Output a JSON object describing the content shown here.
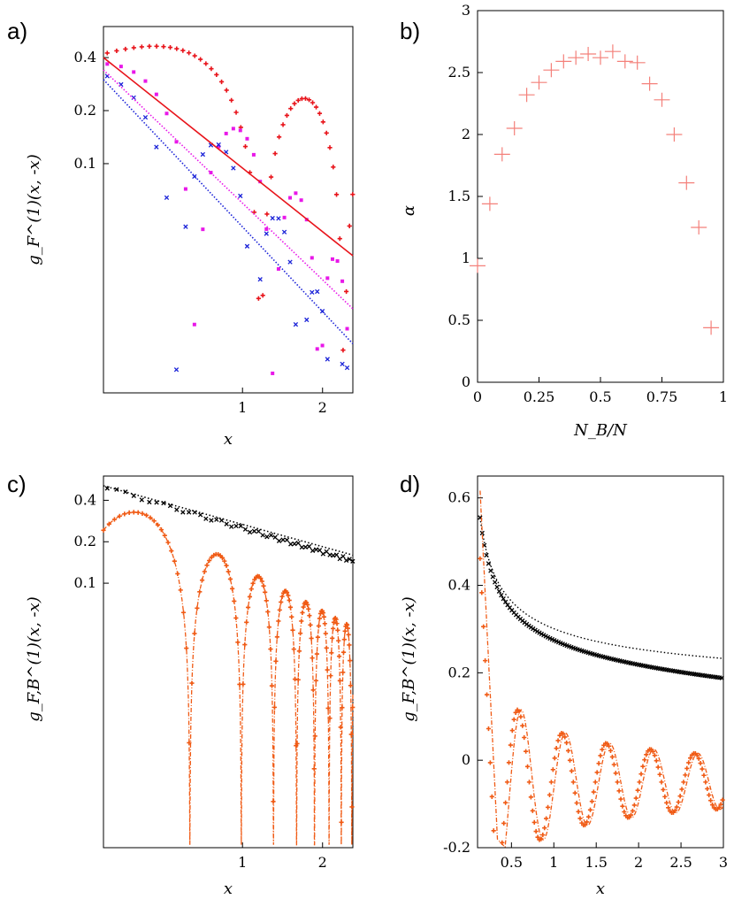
{
  "chart_data": [
    {
      "panel": "a)",
      "type": "scatter",
      "xlabel": "x",
      "ylabel": "g_F^(1)(x, -x)",
      "xscale": "log",
      "yscale": "log",
      "xlim": [
        0.3,
        2.6
      ],
      "ylim": [
        0.005,
        0.6
      ],
      "xticks": [
        {
          "v": 1,
          "label": "1"
        },
        {
          "v": 2,
          "label": "2"
        }
      ],
      "yticks": [
        {
          "v": 0.4,
          "label": "0.4"
        },
        {
          "v": 0.2,
          "label": "0.2"
        },
        {
          "v": 0.1,
          "label": "0.1"
        }
      ],
      "colors": {
        "red": "#e8141b",
        "magenta": "#e818e8",
        "blue": "#1a22d8"
      },
      "series": [
        {
          "color": "red",
          "marker": "plus",
          "style": "oscillating",
          "amp": 0.52,
          "decay": 0.25,
          "period": 0.62,
          "phase": 0.55,
          "step": 0.02
        },
        {
          "color": "magenta",
          "marker": "square",
          "style": "oscillating",
          "amp": 0.38,
          "decay": 0.6,
          "period": 0.32,
          "phase": 0.35,
          "step": 0.03
        },
        {
          "color": "blue",
          "marker": "cross",
          "style": "oscillating",
          "amp": 0.32,
          "decay": 0.8,
          "period": 0.27,
          "phase": 0.3,
          "step": 0.03
        },
        {
          "color": "red",
          "style": "powerlaw",
          "dash": "",
          "x": [
            0.3,
            2.6
          ],
          "y": [
            0.4,
            0.03
          ]
        },
        {
          "color": "magenta",
          "style": "powerlaw",
          "dash": "1.5,2",
          "x": [
            0.3,
            2.6
          ],
          "y": [
            0.34,
            0.015
          ]
        },
        {
          "color": "blue",
          "style": "powerlaw",
          "dash": "1.5,2",
          "x": [
            0.3,
            2.6
          ],
          "y": [
            0.3,
            0.0095
          ]
        }
      ]
    },
    {
      "panel": "b)",
      "type": "scatter",
      "xlabel": "N_B/N",
      "ylabel": "α",
      "xlim": [
        0,
        1
      ],
      "ylim": [
        0,
        3
      ],
      "xticks": [
        {
          "v": 0,
          "label": "0"
        },
        {
          "v": 0.25,
          "label": "0.25"
        },
        {
          "v": 0.5,
          "label": "0.5"
        },
        {
          "v": 0.75,
          "label": "0.75"
        },
        {
          "v": 1,
          "label": "1"
        }
      ],
      "yticks": [
        {
          "v": 0,
          "label": "0"
        },
        {
          "v": 0.5,
          "label": "0.5"
        },
        {
          "v": 1,
          "label": "1"
        },
        {
          "v": 1.5,
          "label": "1.5"
        },
        {
          "v": 2,
          "label": "2"
        },
        {
          "v": 2.5,
          "label": "2.5"
        },
        {
          "v": 3,
          "label": "3"
        }
      ],
      "colors": {
        "points": "#f4807a"
      },
      "x": [
        0.0,
        0.05,
        0.1,
        0.15,
        0.2,
        0.25,
        0.3,
        0.35,
        0.4,
        0.45,
        0.5,
        0.55,
        0.6,
        0.65,
        0.7,
        0.75,
        0.8,
        0.85,
        0.9,
        0.95
      ],
      "y": [
        0.94,
        1.44,
        1.84,
        2.05,
        2.32,
        2.42,
        2.52,
        2.59,
        2.62,
        2.65,
        2.62,
        2.67,
        2.59,
        2.58,
        2.41,
        2.28,
        2.0,
        1.61,
        1.25,
        0.44
      ]
    },
    {
      "panel": "c)",
      "type": "scatter",
      "xlabel": "x",
      "ylabel": "g_F,B^(1)(x, -x)",
      "xscale": "log",
      "yscale": "log",
      "xlim": [
        0.3,
        2.6
      ],
      "ylim": [
        0.0012,
        0.6
      ],
      "xticks": [
        {
          "v": 1,
          "label": "1"
        },
        {
          "v": 2,
          "label": "2"
        }
      ],
      "yticks": [
        {
          "v": 0.4,
          "label": "0.4"
        },
        {
          "v": 0.2,
          "label": "0.2"
        },
        {
          "v": 0.1,
          "label": "0.1"
        }
      ],
      "colors": {
        "black": "#000000",
        "orange": "#f05a14"
      },
      "series": [
        {
          "color": "black",
          "marker": "cross",
          "style": "powerlaw_pts",
          "x": [
            0.3,
            2.6
          ],
          "y": [
            0.5,
            0.145
          ],
          "step": 0.02
        },
        {
          "color": "black",
          "style": "powerlaw",
          "dash": "1.5,2.5",
          "x": [
            0.3,
            2.6
          ],
          "y": [
            0.51,
            0.16
          ]
        },
        {
          "color": "orange",
          "marker": "plus",
          "style": "fermi",
          "amp": 0.46,
          "decay": 0.5,
          "k": 6.28,
          "phase": 0.1,
          "step": 0.015
        },
        {
          "color": "orange",
          "style": "fermi_line",
          "dash": "5,2,1,2",
          "amp": 0.46,
          "decay": 0.5,
          "k": 6.28,
          "phase": 0.1
        }
      ]
    },
    {
      "panel": "d)",
      "type": "scatter",
      "xlabel": "x",
      "ylabel": "g_F,B^(1)(x, -x)",
      "xlim": [
        0.1,
        3
      ],
      "ylim": [
        -0.2,
        0.65
      ],
      "xticks": [
        {
          "v": 0.5,
          "label": "0.5"
        },
        {
          "v": 1,
          "label": "1"
        },
        {
          "v": 1.5,
          "label": "1.5"
        },
        {
          "v": 2,
          "label": "2"
        },
        {
          "v": 2.5,
          "label": "2.5"
        },
        {
          "v": 3,
          "label": "3"
        }
      ],
      "yticks": [
        {
          "v": -0.2,
          "label": "-0.2"
        },
        {
          "v": 0,
          "label": "0"
        },
        {
          "v": 0.2,
          "label": "0.2"
        },
        {
          "v": 0.4,
          "label": "0.4"
        },
        {
          "v": 0.6,
          "label": "0.6"
        }
      ],
      "colors": {
        "black": "#000000",
        "orange": "#f05a14"
      },
      "series": [
        {
          "color": "black",
          "marker": "cross",
          "style": "bose",
          "a": 0.555,
          "p": 0.48,
          "x0": 0.13,
          "offset": -0.01,
          "step": 0.025
        },
        {
          "color": "black",
          "style": "bose_line",
          "dash": "1.5,2.5",
          "a": 0.555,
          "p": 0.43,
          "x0": 0.13,
          "offset": 0.0
        },
        {
          "color": "orange",
          "marker": "plus",
          "style": "lin_osc",
          "step": 0.02,
          "shift": 0.0
        },
        {
          "color": "orange",
          "style": "lin_osc_line",
          "dash": "5,2,1,2",
          "shift": 0.04
        }
      ]
    }
  ]
}
